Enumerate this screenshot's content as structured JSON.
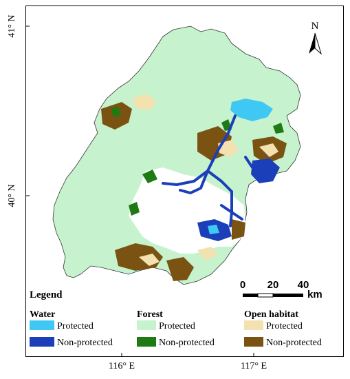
{
  "map": {
    "lat_labels": [
      "41° N",
      "40° N"
    ],
    "lon_labels": [
      "116° E",
      "117° E"
    ],
    "north_label": "N"
  },
  "scale_bar": {
    "ticks": [
      "0",
      "20",
      "40"
    ],
    "unit": "km"
  },
  "legend": {
    "title": "Legend",
    "groups": [
      {
        "name": "Water",
        "items": [
          {
            "label": "Protected",
            "color": "#40c8f4"
          },
          {
            "label": "Non-protected",
            "color": "#1b3fb8"
          }
        ]
      },
      {
        "name": "Forest",
        "items": [
          {
            "label": "Protected",
            "color": "#c6f2cd"
          },
          {
            "label": "Non-protected",
            "color": "#1e7a12"
          }
        ]
      },
      {
        "name": "Open habitat",
        "items": [
          {
            "label": "Protected",
            "color": "#f3e2b0"
          },
          {
            "label": "Non-protected",
            "color": "#7a5212"
          }
        ]
      }
    ]
  }
}
